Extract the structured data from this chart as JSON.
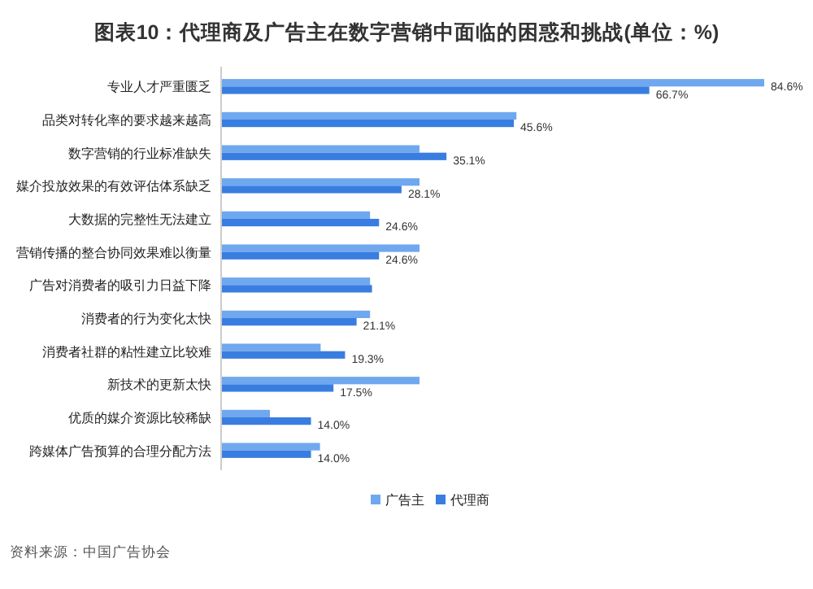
{
  "chart_data": {
    "type": "bar",
    "orientation": "horizontal",
    "title": "图表10：代理商及广告主在数字营销中面临的困惑和挑战(单位：%)",
    "categories": [
      "专业人才严重匮乏",
      "品类对转化率的要求越来越高",
      "数字营销的行业标准缺失",
      "媒介投放效果的有效评估体系缺乏",
      "大数据的完整性无法建立",
      "营销传播的整合协同效果难以衡量",
      "广告对消费者的吸引力日益下降",
      "消费者的行为变化太快",
      "消费者社群的粘性建立比较难",
      "新技术的更新太快",
      "优质的媒介资源比较稀缺",
      "跨媒体广告预算的合理分配方法"
    ],
    "series": [
      {
        "name": "广告主",
        "color": "#6fa8ef",
        "values": [
          84.6,
          46.0,
          30.9,
          30.9,
          23.2,
          30.9,
          23.2,
          23.2,
          15.5,
          30.9,
          7.6,
          15.4
        ],
        "value_labels": [
          "84.6%",
          null,
          null,
          null,
          null,
          null,
          null,
          null,
          null,
          null,
          null,
          null
        ]
      },
      {
        "name": "代理商",
        "color": "#3a7de0",
        "values": [
          66.7,
          45.6,
          35.1,
          28.1,
          24.6,
          24.6,
          23.5,
          21.1,
          19.3,
          17.5,
          14.0,
          14.0
        ],
        "value_labels": [
          "66.7%",
          "45.6%",
          "35.1%",
          "28.1%",
          "24.6%",
          "24.6%",
          null,
          "21.1%",
          "19.3%",
          "17.5%",
          "14.0%",
          "14.0%"
        ]
      }
    ],
    "legend": "bottom",
    "annotations": [
      "资料来源：中国广告协会"
    ]
  }
}
